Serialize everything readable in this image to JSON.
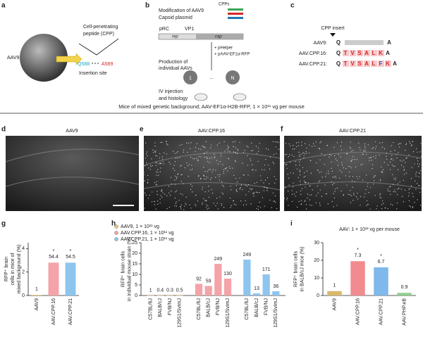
{
  "panel_labels": [
    "a",
    "b",
    "c",
    "d",
    "e",
    "f",
    "g",
    "h",
    "i"
  ],
  "panel_a": {
    "virus": "AAV9",
    "cpp": [
      "Cell-penetrating",
      "peptide (CPP)"
    ],
    "q": "Q588",
    "a": "A589",
    "site": "Insertion site"
  },
  "panel_b": {
    "title": [
      "Modification of AAV9",
      "Capsid plasmid"
    ],
    "cpps": "CPPs",
    "prc": "pRC",
    "vp1": "VP1",
    "rep": "rep",
    "cap": "cap",
    "helpers": [
      "+ pHelper",
      "+ pAAV-EF1α-RFP"
    ],
    "production": [
      "Production of",
      "individual AAVs"
    ],
    "first": "1",
    "last": "N",
    "dots": "...",
    "injection": [
      "IV injection",
      "and histology"
    ]
  },
  "panel_c": {
    "insert": "CPP insert",
    "rows": [
      {
        "name": "AAV9:",
        "residues": [
          "Q",
          "A"
        ],
        "colors": [
          "#222",
          "#222"
        ]
      },
      {
        "name": "AAV.CPP.16:",
        "residues": [
          "Q",
          "T",
          "V",
          "S",
          "A",
          "L",
          "K",
          "A"
        ],
        "colors": [
          "#222",
          "#d62728",
          "#d62728",
          "#d62728",
          "#d62728",
          "#d62728",
          "#d62728",
          "#222"
        ]
      },
      {
        "name": "AAV.CPP.21:",
        "residues": [
          "Q",
          "T",
          "V",
          "S",
          "A",
          "L",
          "F",
          "K",
          "A"
        ],
        "colors": [
          "#222",
          "#d62728",
          "#d62728",
          "#d62728",
          "#d62728",
          "#d62728",
          "#1f5fbf",
          "#d62728",
          "#222"
        ]
      }
    ]
  },
  "header": "Mice of mixed genetic background; AAV-EF1α-H2B-RFP, 1 × 10¹¹ vg per mouse",
  "images": [
    "AAV9",
    "AAV.CPP.16",
    "AAV.CPP.21"
  ],
  "chart_data": [
    {
      "type": "bar",
      "ylabel": [
        "RFP⁺ brain",
        "cells in mice of",
        "mixed background (%)"
      ],
      "categories": [
        "AAV9",
        "AAV.CPP.16",
        "AAV.CPP.21"
      ],
      "values": [
        0.05,
        2.8,
        2.8
      ],
      "colors": [
        "#e8c77a",
        "#f4a3a8",
        "#8ec5ef"
      ],
      "fold_labels": [
        "1",
        "54.4",
        "54.5"
      ],
      "significance": [
        null,
        "*",
        "*"
      ],
      "ylim": [
        0,
        4.5
      ],
      "yticks": [
        0,
        2,
        4
      ]
    },
    {
      "type": "grouped_bar",
      "ylabel": [
        "RFP⁺ brain cells",
        "in individual mouse strain (%)"
      ],
      "categories": [
        "C57BL/6J",
        "BALB/cJ",
        "FVB/NJ",
        "129S1/SvImJ"
      ],
      "series": [
        {
          "name": "AAV9, 1 × 10¹¹ vg",
          "color": "#e8c77a",
          "values": [
            0.05,
            0.05,
            0.05,
            0.05
          ],
          "fold_labels": [
            "1",
            "0.4",
            "0.3",
            "0.5"
          ]
        },
        {
          "name": "AAV.CPP.16, 1 × 10¹¹ vg",
          "color": "#f4a3a8",
          "values": [
            5.5,
            4.5,
            15,
            8
          ],
          "fold_labels": [
            "92",
            "59",
            "249",
            "130"
          ]
        },
        {
          "name": "AAV.CPP.21, 1 × 10¹¹ vg",
          "color": "#8ec5ef",
          "values": [
            17,
            1,
            10,
            2
          ],
          "fold_labels": [
            "249",
            "13",
            "171",
            "36"
          ]
        }
      ],
      "ylim": [
        0,
        25
      ],
      "yticks": [
        0,
        5,
        10,
        15,
        20,
        25
      ]
    },
    {
      "type": "bar",
      "title": "AAV: 1 × 10¹² vg per mouse",
      "ylabel": [
        "RFP⁺ brain cells",
        "in BALB/cJ mice (%)"
      ],
      "categories": [
        "AAV9",
        "AAV.CPP.16",
        "AAV.CPP.21",
        "AAV.PHP.eB"
      ],
      "values": [
        2.5,
        19.5,
        16,
        1.5
      ],
      "colors": [
        "#d9b86a",
        "#f28b8f",
        "#7fb8ea",
        "#8fd18f"
      ],
      "fold_labels": [
        "1",
        "7.3",
        "6.7",
        "0.9"
      ],
      "significance": [
        null,
        "*",
        "*",
        null
      ],
      "ylim": [
        0,
        30
      ],
      "yticks": [
        0,
        10,
        20,
        30
      ]
    }
  ]
}
